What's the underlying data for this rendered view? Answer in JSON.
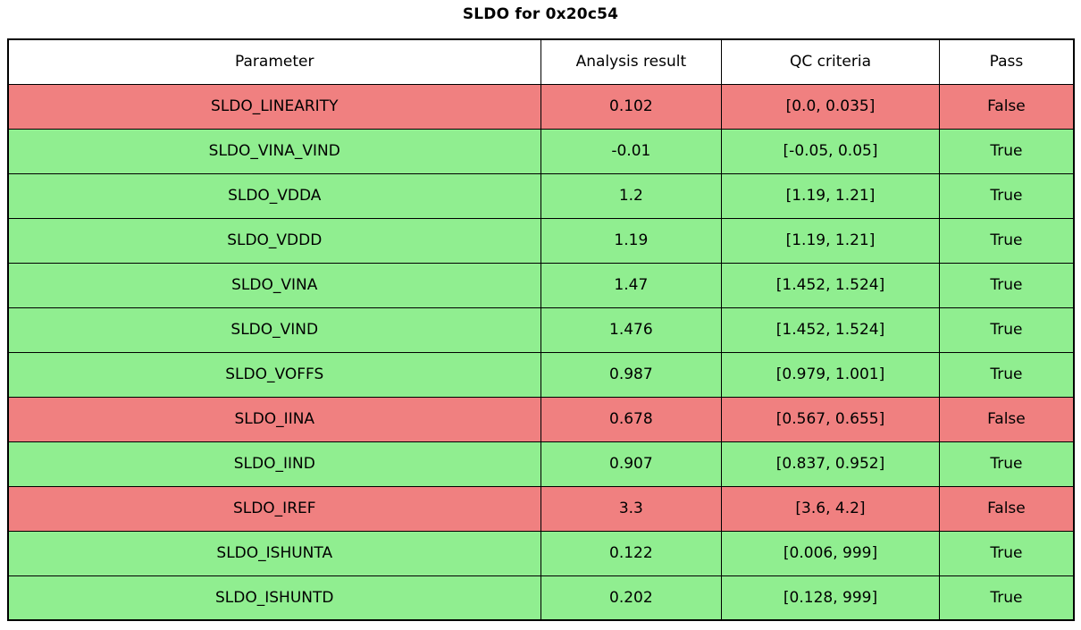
{
  "title": "SLDO for 0x20c54",
  "colors": {
    "pass_green": "#90ee90",
    "fail_red": "#f08080",
    "border": "#000000",
    "header_bg": "#ffffff"
  },
  "table": {
    "headers": [
      "Parameter",
      "Analysis result",
      "QC criteria",
      "Pass"
    ],
    "rows": [
      {
        "parameter": "SLDO_LINEARITY",
        "analysis_result": "0.102",
        "qc_criteria": "[0.0, 0.035]",
        "pass": "False",
        "status": "fail"
      },
      {
        "parameter": "SLDO_VINA_VIND",
        "analysis_result": "-0.01",
        "qc_criteria": "[-0.05, 0.05]",
        "pass": "True",
        "status": "pass"
      },
      {
        "parameter": "SLDO_VDDA",
        "analysis_result": "1.2",
        "qc_criteria": "[1.19, 1.21]",
        "pass": "True",
        "status": "pass"
      },
      {
        "parameter": "SLDO_VDDD",
        "analysis_result": "1.19",
        "qc_criteria": "[1.19, 1.21]",
        "pass": "True",
        "status": "pass"
      },
      {
        "parameter": "SLDO_VINA",
        "analysis_result": "1.47",
        "qc_criteria": "[1.452, 1.524]",
        "pass": "True",
        "status": "pass"
      },
      {
        "parameter": "SLDO_VIND",
        "analysis_result": "1.476",
        "qc_criteria": "[1.452, 1.524]",
        "pass": "True",
        "status": "pass"
      },
      {
        "parameter": "SLDO_VOFFS",
        "analysis_result": "0.987",
        "qc_criteria": "[0.979, 1.001]",
        "pass": "True",
        "status": "pass"
      },
      {
        "parameter": "SLDO_IINA",
        "analysis_result": "0.678",
        "qc_criteria": "[0.567, 0.655]",
        "pass": "False",
        "status": "fail"
      },
      {
        "parameter": "SLDO_IIND",
        "analysis_result": "0.907",
        "qc_criteria": "[0.837, 0.952]",
        "pass": "True",
        "status": "pass"
      },
      {
        "parameter": "SLDO_IREF",
        "analysis_result": "3.3",
        "qc_criteria": "[3.6, 4.2]",
        "pass": "False",
        "status": "fail"
      },
      {
        "parameter": "SLDO_ISHUNTA",
        "analysis_result": "0.122",
        "qc_criteria": "[0.006, 999]",
        "pass": "True",
        "status": "pass"
      },
      {
        "parameter": "SLDO_ISHUNTD",
        "analysis_result": "0.202",
        "qc_criteria": "[0.128, 999]",
        "pass": "True",
        "status": "pass"
      }
    ]
  },
  "chart_data": {
    "type": "table",
    "title": "SLDO for 0x20c54",
    "columns": [
      "Parameter",
      "Analysis result",
      "QC criteria",
      "Pass"
    ],
    "rows": [
      [
        "SLDO_LINEARITY",
        0.102,
        "[0.0, 0.035]",
        false
      ],
      [
        "SLDO_VINA_VIND",
        -0.01,
        "[-0.05, 0.05]",
        true
      ],
      [
        "SLDO_VDDA",
        1.2,
        "[1.19, 1.21]",
        true
      ],
      [
        "SLDO_VDDD",
        1.19,
        "[1.19, 1.21]",
        true
      ],
      [
        "SLDO_VINA",
        1.47,
        "[1.452, 1.524]",
        true
      ],
      [
        "SLDO_VIND",
        1.476,
        "[1.452, 1.524]",
        true
      ],
      [
        "SLDO_VOFFS",
        0.987,
        "[0.979, 1.001]",
        true
      ],
      [
        "SLDO_IINA",
        0.678,
        "[0.567, 0.655]",
        false
      ],
      [
        "SLDO_IIND",
        0.907,
        "[0.837, 0.952]",
        true
      ],
      [
        "SLDO_IREF",
        3.3,
        "[3.6, 4.2]",
        false
      ],
      [
        "SLDO_ISHUNTA",
        0.122,
        "[0.006, 999]",
        true
      ],
      [
        "SLDO_ISHUNTD",
        0.202,
        "[0.128, 999]",
        true
      ]
    ],
    "row_colors": [
      "#f08080",
      "#90ee90",
      "#90ee90",
      "#90ee90",
      "#90ee90",
      "#90ee90",
      "#90ee90",
      "#f08080",
      "#90ee90",
      "#f08080",
      "#90ee90",
      "#90ee90"
    ],
    "layout": {
      "header_bg": "#ffffff",
      "grid": true,
      "title_position": "top-center"
    }
  }
}
